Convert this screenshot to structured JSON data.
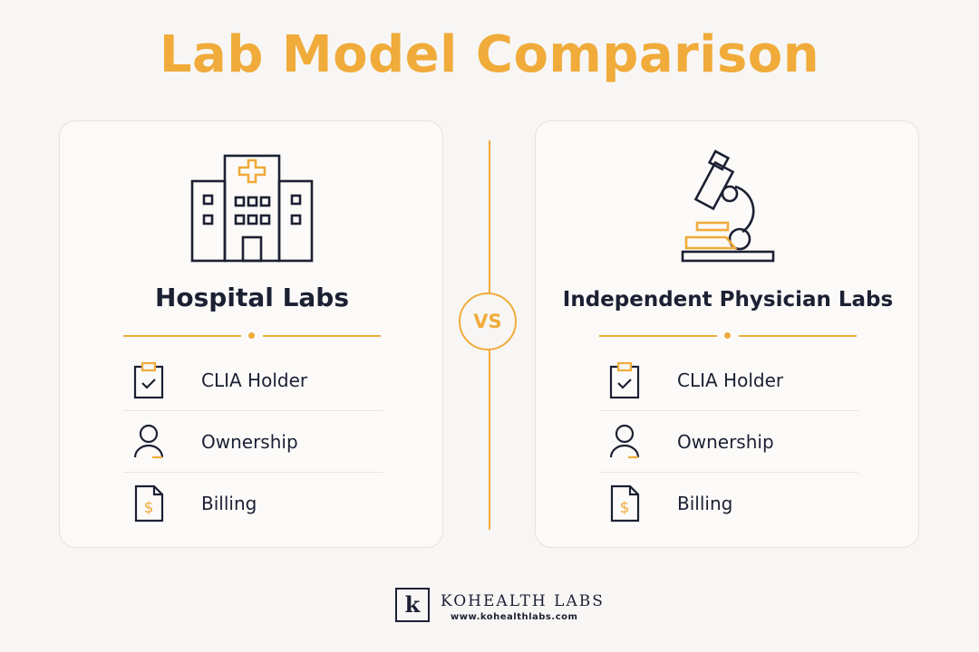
{
  "title": "Lab Model Comparison",
  "vs_label": "VS",
  "colors": {
    "accent": "#f0ab3a",
    "ink": "#1c2033",
    "background": "#f7f6f4"
  },
  "cards": [
    {
      "icon": "hospital-icon",
      "title": "Hospital Labs",
      "rows": [
        {
          "icon": "clipboard-check-icon",
          "label": "CLIA Holder"
        },
        {
          "icon": "person-icon",
          "label": "Ownership"
        },
        {
          "icon": "dollar-document-icon",
          "label": "Billing"
        }
      ]
    },
    {
      "icon": "microscope-icon",
      "title": "Independent Physician Labs",
      "rows": [
        {
          "icon": "clipboard-check-icon",
          "label": "CLIA Holder"
        },
        {
          "icon": "person-icon",
          "label": "Ownership"
        },
        {
          "icon": "dollar-document-icon",
          "label": "Billing"
        }
      ]
    }
  ],
  "footer": {
    "logo_letter": "k",
    "brand": "KOHEALTH LABS",
    "url": "www.kohealthlabs.com"
  }
}
